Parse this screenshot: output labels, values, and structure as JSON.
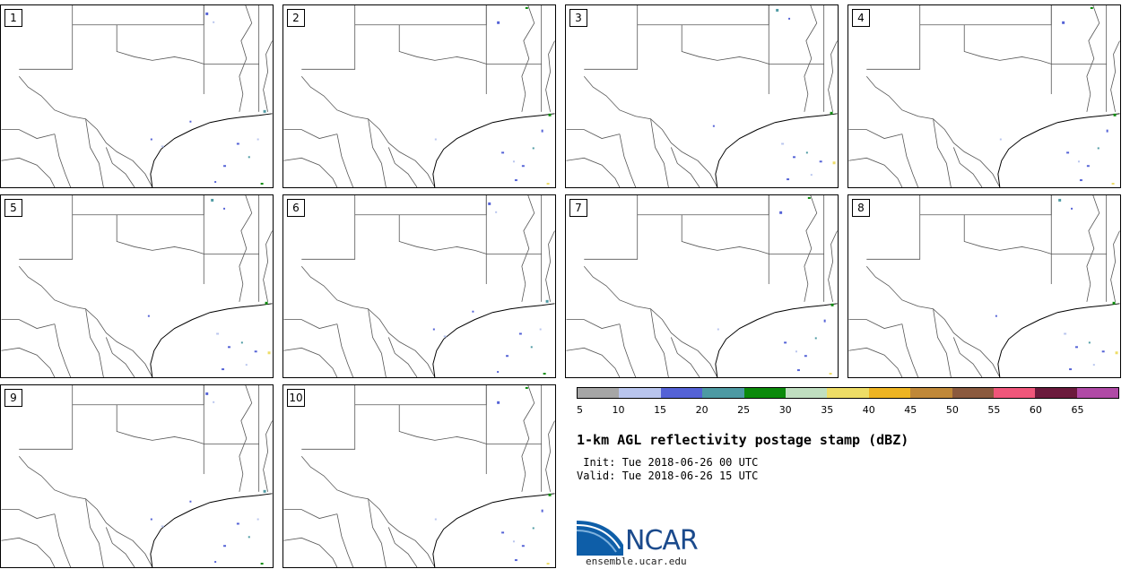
{
  "panels": [
    {
      "label": "1"
    },
    {
      "label": "2"
    },
    {
      "label": "3"
    },
    {
      "label": "4"
    },
    {
      "label": "5"
    },
    {
      "label": "6"
    },
    {
      "label": "7"
    },
    {
      "label": "8"
    },
    {
      "label": "9"
    },
    {
      "label": "10"
    }
  ],
  "colorbar": {
    "colors": [
      "#a6a6a6",
      "#b9c5ee",
      "#5462d6",
      "#4d9aa3",
      "#0b8a0b",
      "#c0dfc0",
      "#eedd66",
      "#eeb422",
      "#c08838",
      "#8b5a3e",
      "#f0567a",
      "#6b1a3c",
      "#b04aa6"
    ],
    "ticks": [
      "5",
      "10",
      "15",
      "20",
      "25",
      "30",
      "35",
      "40",
      "45",
      "50",
      "55",
      "60",
      "65"
    ]
  },
  "title": "1-km AGL reflectivity postage stamp (dBZ)",
  "init_line": " Init: Tue 2018-06-26 00 UTC",
  "valid_line": "Valid: Tue 2018-06-26 15 UTC",
  "logo_text": "NCAR",
  "url": "ensemble.ucar.edu"
}
